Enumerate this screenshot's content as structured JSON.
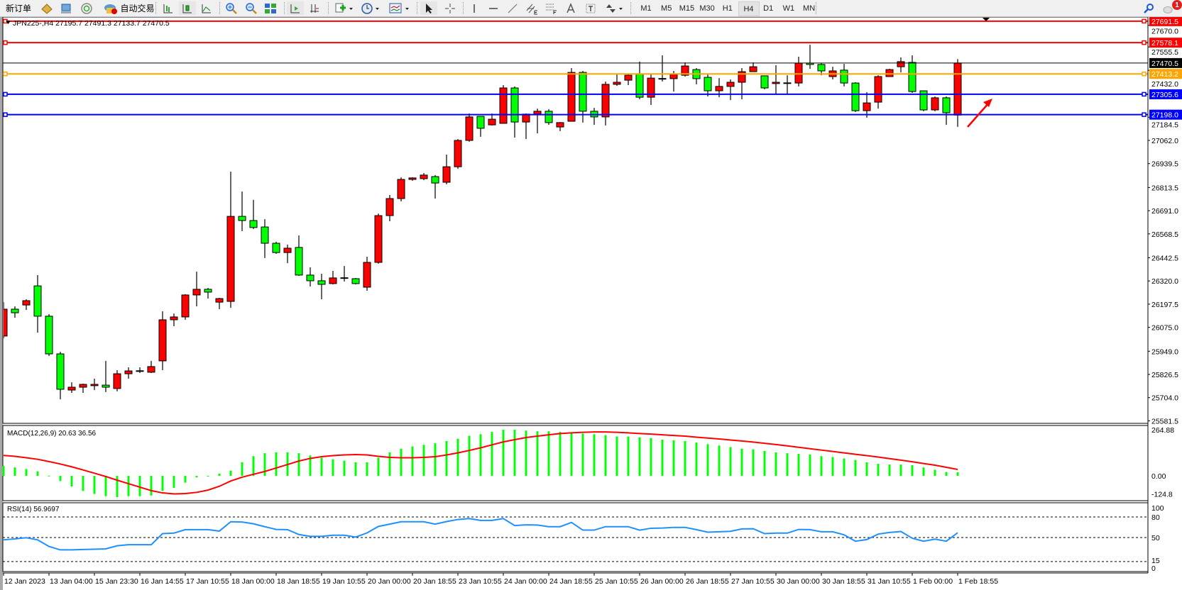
{
  "toolbar": {
    "new_order_label": "新订单",
    "auto_trading_label": "自动交易",
    "timeframes": [
      "M1",
      "M5",
      "M15",
      "M30",
      "H1",
      "H4",
      "D1",
      "W1",
      "MN"
    ],
    "active_timeframe": "H4",
    "notification_count": "1"
  },
  "chart": {
    "header": "JPN225-,H4  27195.7 27491.3 27133.7 27470.5",
    "bull_color": "#ff0000",
    "bear_color": "#00ff00",
    "price_ticks": [
      "27670.0",
      "27555.5",
      "27432.0",
      "27184.5",
      "27062.0",
      "26939.5",
      "26813.5",
      "26691.0",
      "26568.5",
      "26442.5",
      "26320.0",
      "26197.5",
      "26075.0",
      "25949.0",
      "25826.5",
      "25704.0",
      "25581.5"
    ],
    "hlines": [
      {
        "price": "27691.5",
        "color": "#ff0000"
      },
      {
        "price": "27578.1",
        "color": "#ff0000"
      },
      {
        "price": "27413.2",
        "color": "#ffa500"
      },
      {
        "price": "27305.6",
        "color": "#0000ff"
      },
      {
        "price": "27198.0",
        "color": "#0000ff"
      }
    ],
    "bid_line": {
      "price": "27470.5",
      "color": "#000000"
    },
    "time_labels": [
      "12 Jan 2023",
      "13 Jan 04:00",
      "15 Jan 23:30",
      "16 Jan 14:55",
      "17 Jan 10:55",
      "18 Jan 00:00",
      "18 Jan 18:55",
      "19 Jan 10:55",
      "20 Jan 00:00",
      "20 Jan 18:55",
      "23 Jan 10:55",
      "24 Jan 00:00",
      "24 Jan 18:55",
      "25 Jan 10:55",
      "26 Jan 00:00",
      "26 Jan 18:55",
      "27 Jan 10:55",
      "30 Jan 00:00",
      "30 Jan 18:55",
      "31 Jan 10:55",
      "1 Feb 00:00",
      "1 Feb 18:55"
    ],
    "annotation_arrow_color": "#ff0000"
  },
  "chart_data": [
    {
      "type": "candlestick",
      "symbol": "JPN225-",
      "timeframe": "H4",
      "ylim": [
        25581.5,
        27691.5
      ],
      "ohlc_order": [
        "open",
        "high",
        "low",
        "close"
      ],
      "candles": [
        [
          26029,
          26208,
          26017,
          26171
        ],
        [
          26171,
          26186,
          26126,
          26152
        ],
        [
          26193,
          26223,
          26167,
          26216
        ],
        [
          26294,
          26351,
          26047,
          26134
        ],
        [
          26134,
          26145,
          25924,
          25935
        ],
        [
          25935,
          25946,
          25695,
          25748
        ],
        [
          25744,
          25785,
          25729,
          25759
        ],
        [
          25759,
          25778,
          25729,
          25774
        ],
        [
          25767,
          25804,
          25744,
          25774
        ],
        [
          25770,
          25898,
          25733,
          25759
        ],
        [
          25752,
          25849,
          25737,
          25830
        ],
        [
          25830,
          25864,
          25804,
          25845
        ],
        [
          25845,
          25864,
          25834,
          25846
        ],
        [
          25838,
          25898,
          25834,
          25868
        ],
        [
          25898,
          26160,
          25849,
          26115
        ],
        [
          26115,
          26148,
          26081,
          26130
        ],
        [
          26130,
          26250,
          26115,
          26246
        ],
        [
          26246,
          26369,
          26186,
          26276
        ],
        [
          26276,
          26283,
          26227,
          26261
        ],
        [
          26208,
          26231,
          26171,
          26227
        ],
        [
          26212,
          26897,
          26178,
          26661
        ],
        [
          26661,
          26792,
          26583,
          26639
        ],
        [
          26639,
          26748,
          26594,
          26602
        ],
        [
          26605,
          26646,
          26441,
          26519
        ],
        [
          26519,
          26527,
          26463,
          26470
        ],
        [
          26470,
          26512,
          26414,
          26493
        ],
        [
          26497,
          26560,
          26347,
          26351
        ],
        [
          26351,
          26392,
          26291,
          26321
        ],
        [
          26321,
          26358,
          26223,
          26302
        ],
        [
          26306,
          26373,
          26302,
          26336
        ],
        [
          26336,
          26399,
          26317,
          26337
        ],
        [
          26332,
          26336,
          26302,
          26306
        ],
        [
          26287,
          26448,
          26268,
          26418
        ],
        [
          26418,
          26676,
          26411,
          26665
        ],
        [
          26665,
          26774,
          26635,
          26755
        ],
        [
          26755,
          26867,
          26740,
          26856
        ],
        [
          26856,
          26867,
          26849,
          26864
        ],
        [
          26860,
          26890,
          26852,
          26879
        ],
        [
          26871,
          26879,
          26755,
          26837
        ],
        [
          26841,
          26987,
          26830,
          26923
        ],
        [
          26923,
          27069,
          26912,
          27062
        ],
        [
          27062,
          27204,
          27055,
          27186
        ],
        [
          27189,
          27189,
          27081,
          27126
        ],
        [
          27144,
          27204,
          27141,
          27174
        ],
        [
          27152,
          27354,
          27152,
          27339
        ],
        [
          27339,
          27347,
          27077,
          27159
        ],
        [
          27159,
          27204,
          27069,
          27201
        ],
        [
          27201,
          27230,
          27099,
          27216
        ],
        [
          27216,
          27227,
          27144,
          27156
        ],
        [
          27133,
          27159,
          27111,
          27156
        ],
        [
          27163,
          27444,
          27163,
          27421
        ],
        [
          27421,
          27429,
          27156,
          27216
        ],
        [
          27216,
          27234,
          27144,
          27186
        ],
        [
          27186,
          27373,
          27141,
          27358
        ],
        [
          27358,
          27410,
          27350,
          27369
        ],
        [
          27380,
          27410,
          27354,
          27406
        ],
        [
          27414,
          27478,
          27279,
          27290
        ],
        [
          27290,
          27414,
          27249,
          27391
        ],
        [
          27388,
          27511,
          27373,
          27389
        ],
        [
          27388,
          27429,
          27320,
          27410
        ],
        [
          27406,
          27474,
          27399,
          27455
        ],
        [
          27436,
          27444,
          27358,
          27388
        ],
        [
          27395,
          27414,
          27294,
          27324
        ],
        [
          27324,
          27391,
          27290,
          27347
        ],
        [
          27347,
          27384,
          27275,
          27369
        ],
        [
          27369,
          27444,
          27279,
          27425
        ],
        [
          27425,
          27474,
          27425,
          27451
        ],
        [
          27403,
          27403,
          27332,
          27339
        ],
        [
          27362,
          27459,
          27302,
          27369
        ],
        [
          27365,
          27406,
          27302,
          27366
        ],
        [
          27365,
          27504,
          27347,
          27470
        ],
        [
          27470,
          27567,
          27440,
          27463
        ],
        [
          27463,
          27470,
          27406,
          27429
        ],
        [
          27399,
          27451,
          27384,
          27429
        ],
        [
          27433,
          27466,
          27347,
          27365
        ],
        [
          27365,
          27369,
          27212,
          27219
        ],
        [
          27219,
          27317,
          27182,
          27260
        ],
        [
          27264,
          27406,
          27230,
          27399
        ],
        [
          27399,
          27440,
          27399,
          27436
        ],
        [
          27451,
          27500,
          27421,
          27478
        ],
        [
          27474,
          27511,
          27313,
          27320
        ],
        [
          27324,
          27324,
          27216,
          27223
        ],
        [
          27223,
          27294,
          27216,
          27287
        ],
        [
          27287,
          27294,
          27144,
          27208
        ],
        [
          27195.7,
          27491.3,
          27133.7,
          27470.5
        ]
      ]
    },
    {
      "type": "bar+line",
      "title": "MACD(12,26,9) 20.63 36.56",
      "ylim": [
        -124.8,
        264.88
      ],
      "ticks": [
        "264.88",
        "0.00",
        "-124.8"
      ],
      "histogram_color": "#00ff00",
      "signal_color": "#ff0000",
      "histogram": [
        56,
        48,
        39,
        26,
        1,
        -30,
        -61,
        -87,
        -104,
        -117,
        -122,
        -117,
        -117,
        -113,
        -87,
        -69,
        -39,
        -9,
        -4,
        13,
        30,
        78,
        113,
        130,
        135,
        135,
        130,
        117,
        104,
        95,
        87,
        78,
        78,
        104,
        135,
        156,
        169,
        178,
        187,
        200,
        213,
        230,
        239,
        252,
        265,
        265,
        260,
        256,
        256,
        252,
        247,
        243,
        239,
        234,
        226,
        226,
        221,
        217,
        208,
        204,
        200,
        191,
        182,
        174,
        165,
        156,
        152,
        143,
        135,
        130,
        126,
        122,
        113,
        108,
        100,
        91,
        78,
        69,
        65,
        65,
        61,
        48,
        35,
        22,
        20.63
      ],
      "signal": [
        117,
        112,
        104,
        95,
        82,
        68,
        52,
        34,
        15,
        -4,
        -25,
        -45,
        -65,
        -85,
        -98,
        -104,
        -102,
        -95,
        -82,
        -60,
        -30,
        -8,
        9,
        25,
        45,
        65,
        85,
        100,
        110,
        116,
        120,
        122,
        120,
        112,
        106,
        104,
        104,
        106,
        110,
        120,
        132,
        146,
        161,
        178,
        195,
        208,
        220,
        228,
        236,
        243,
        247,
        250,
        252,
        252,
        250,
        247,
        243,
        240,
        236,
        232,
        228,
        222,
        217,
        212,
        206,
        200,
        194,
        187,
        180,
        172,
        164,
        156,
        148,
        140,
        132,
        124,
        116,
        108,
        99,
        90,
        81,
        71,
        61,
        49,
        36.56
      ]
    },
    {
      "type": "line",
      "title": "RSI(14) 56.9697",
      "ylim": [
        0,
        100
      ],
      "ticks": [
        "100",
        "80",
        "50",
        "15",
        "0"
      ],
      "levels": [
        80,
        50,
        15
      ],
      "color": "#1e90ff",
      "values": [
        46.6,
        48,
        49.7,
        46.6,
        37,
        32,
        32,
        32.5,
        33,
        33.5,
        38,
        39.5,
        39.5,
        39.5,
        55.7,
        56.4,
        61.5,
        61.5,
        61.5,
        59.4,
        73,
        72.6,
        70,
        65.8,
        61.8,
        61.5,
        54.4,
        51.7,
        51.7,
        53.4,
        53.4,
        50.7,
        56.7,
        66.2,
        69.5,
        73,
        73,
        73,
        69.5,
        73.3,
        76.3,
        77.6,
        75,
        75,
        77.6,
        67.5,
        68.5,
        68.2,
        65.8,
        65.8,
        72,
        60.8,
        60.8,
        65.8,
        65.8,
        65.8,
        60.8,
        63.5,
        63.8,
        64.8,
        64.8,
        61.5,
        57.8,
        58.4,
        59.1,
        62.5,
        62.8,
        55.7,
        56.4,
        56.4,
        61.8,
        61.5,
        58.4,
        58.4,
        54,
        44.6,
        47,
        55,
        57.4,
        58.8,
        49,
        44.6,
        47.6,
        44.6,
        56.97
      ]
    }
  ]
}
